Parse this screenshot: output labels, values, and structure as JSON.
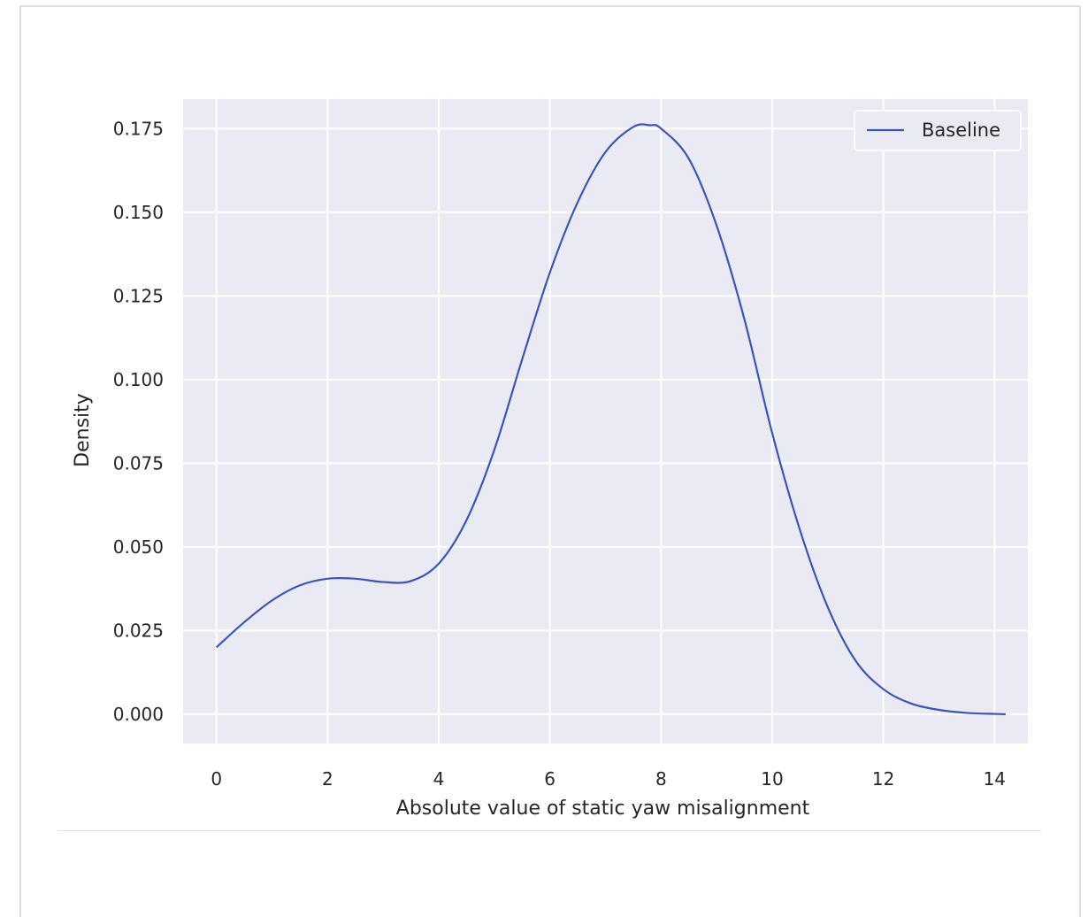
{
  "chart_data": {
    "type": "line",
    "title": "",
    "xlabel": "Absolute value of static yaw misalignment",
    "ylabel": "Density",
    "xlim": [
      -0.6,
      14.6
    ],
    "ylim": [
      -0.00875,
      0.1838
    ],
    "xticks": [
      0,
      2,
      4,
      6,
      8,
      10,
      12,
      14
    ],
    "xtick_labels": [
      "0",
      "2",
      "4",
      "6",
      "8",
      "10",
      "12",
      "14"
    ],
    "yticks": [
      0.0,
      0.025,
      0.05,
      0.075,
      0.1,
      0.125,
      0.15,
      0.175
    ],
    "ytick_labels": [
      "0.000",
      "0.025",
      "0.050",
      "0.075",
      "0.100",
      "0.125",
      "0.150",
      "0.175"
    ],
    "grid": true,
    "legend_position": "top-right",
    "colors": {
      "plot_background": "#eaeaf2",
      "grid": "#ffffff",
      "line": "#3a57b0"
    },
    "series": [
      {
        "name": "Baseline",
        "x": [
          0,
          0.5,
          1,
          1.5,
          2,
          2.5,
          3,
          3.5,
          4,
          4.5,
          5,
          5.5,
          6,
          6.5,
          7,
          7.5,
          7.8,
          8,
          8.5,
          9,
          9.5,
          10,
          10.5,
          11,
          11.5,
          12,
          12.5,
          13,
          13.5,
          14,
          14.2
        ],
        "y": [
          0.02,
          0.0275,
          0.034,
          0.0385,
          0.0405,
          0.0405,
          0.0395,
          0.0398,
          0.045,
          0.058,
          0.079,
          0.106,
          0.132,
          0.153,
          0.168,
          0.1755,
          0.176,
          0.175,
          0.166,
          0.146,
          0.118,
          0.084,
          0.055,
          0.032,
          0.016,
          0.0075,
          0.0032,
          0.0013,
          0.0004,
          0.0001,
          0.0
        ]
      }
    ]
  }
}
